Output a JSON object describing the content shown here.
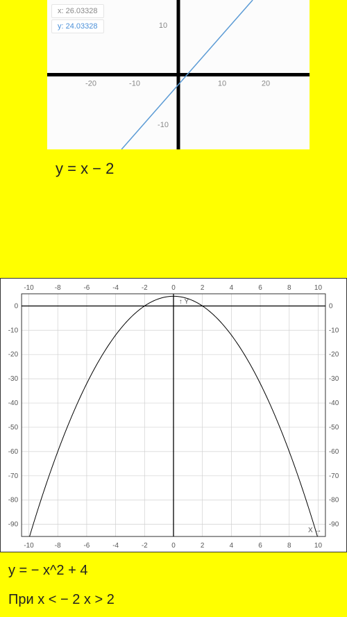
{
  "chart1": {
    "type": "line",
    "background_color": "#fcfcfc",
    "axis_color": "#000000",
    "axis_width": 5,
    "line_color": "#5b9bd5",
    "line_width": 1.5,
    "tick_font_size": 11,
    "tick_color": "#888888",
    "xlim": [
      -30,
      30
    ],
    "ylim": [
      -15,
      15
    ],
    "xticks": [
      -20,
      -10,
      10,
      20
    ],
    "yticks": [
      -10,
      10
    ],
    "line_points": [
      [
        -13,
        -15
      ],
      [
        17,
        15
      ]
    ],
    "coord_readout": {
      "x_label": "x: 26.03328",
      "y_label": "y: 24.03328"
    }
  },
  "equation1": "y = x − 2",
  "chart2": {
    "type": "line",
    "background_color": "#ffffff",
    "grid_color": "#d0d0d0",
    "axis_color": "#000000",
    "curve_color": "#000000",
    "curve_width": 1,
    "tick_font_size": 10,
    "tick_color": "#555555",
    "xlim": [
      -10.5,
      10.5
    ],
    "ylim": [
      -95,
      5
    ],
    "xticks_top": [
      -10,
      -8,
      -6,
      -4,
      -2,
      0,
      2,
      4,
      6,
      8,
      10
    ],
    "xticks_bottom": [
      -10,
      -8,
      -6,
      -4,
      -2,
      0,
      2,
      4,
      6,
      8,
      10
    ],
    "yticks": [
      0,
      -10,
      -20,
      -30,
      -40,
      -50,
      -60,
      -70,
      -80,
      -90
    ],
    "curve_formula": "-x^2+4",
    "x_axis_label": "X →",
    "y_axis_label": "Y",
    "y_axis_arrow": "↑"
  },
  "equation2": "y = − x^2 + 4",
  "equation3": "При x < − 2 x > 2"
}
